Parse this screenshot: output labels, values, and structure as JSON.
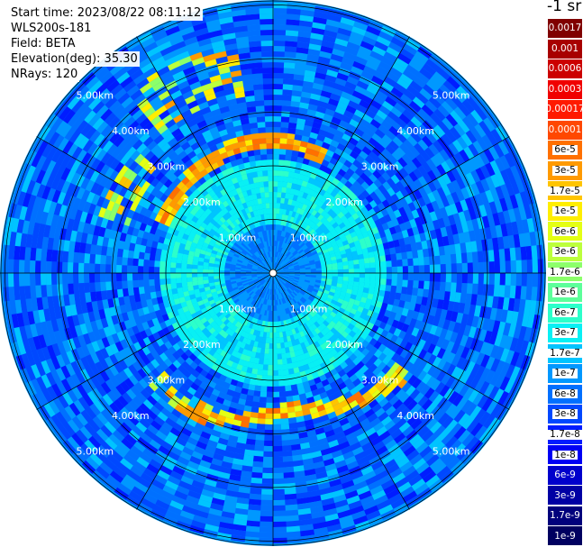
{
  "header": {
    "start_time": "Start time: 2023/08/22 08:11:12",
    "station": "WLS200s-181",
    "field": "Field: BETA",
    "elevation": "Elevation(deg): 35.30",
    "nrays": "NRays: 120"
  },
  "chart_data": {
    "type": "heatmap",
    "projection": "polar (PPI scan)",
    "field": "BETA",
    "unit": "-1 sr",
    "ranges_km": [
      1,
      2,
      3,
      4,
      5
    ],
    "range_labels": [
      "1.00km",
      "2.00km",
      "3.00km",
      "4.00km",
      "5.00km"
    ],
    "spoke_angles_deg": [
      0,
      30,
      60,
      90,
      120,
      150,
      180,
      210,
      240,
      270,
      300,
      330
    ],
    "colorbar": {
      "title": "-1 sr",
      "labels": [
        "0.0017",
        "0.001",
        "0.0006",
        "0.0003",
        "0.00017",
        "0.0001",
        "6e-5",
        "3e-5",
        "1.7e-5",
        "1e-5",
        "6e-6",
        "3e-6",
        "1.7e-6",
        "1e-6",
        "6e-7",
        "3e-7",
        "1.7e-7",
        "1e-7",
        "6e-8",
        "3e-8",
        "1.7e-8",
        "1e-8",
        "6e-9",
        "3e-9",
        "1.7e-9",
        "1e-9"
      ],
      "colors": [
        "#800000",
        "#a80000",
        "#cc0000",
        "#f00000",
        "#ff1a00",
        "#ff4800",
        "#ff7000",
        "#ff9a00",
        "#ffc400",
        "#ffee00",
        "#e4ff14",
        "#bcff3c",
        "#8cff6a",
        "#5cff9a",
        "#2cffca",
        "#08f0f4",
        "#00c4ff",
        "#0098ff",
        "#0070ff",
        "#0048ff",
        "#001cff",
        "#0000f4",
        "#0000cc",
        "#0000a4",
        "#00007c",
        "#000060"
      ],
      "white_label_indices": [
        0,
        1,
        2,
        3,
        4,
        5,
        22,
        23,
        24,
        25
      ]
    },
    "features": [
      {
        "description": "near-field return",
        "range_km": [
          0,
          1.0
        ],
        "level": "1e-7 to 1.7e-7"
      },
      {
        "description": "mid ring",
        "range_km": [
          1.0,
          2.2
        ],
        "level": "3e-7 to 6e-7"
      },
      {
        "description": "outer background",
        "range_km": [
          2.2,
          5.1
        ],
        "level": "3e-8 to 1e-7"
      },
      {
        "description": "aerosol layer arc (north-west)",
        "range_km": [
          2.2,
          4.3
        ],
        "azimuth_deg": [
          -45,
          5
        ],
        "level": "3e-5 to 1e-4"
      },
      {
        "description": "aerosol layer arc (south)",
        "range_km": [
          2.4,
          3.1
        ],
        "azimuth_deg": [
          130,
          215
        ],
        "level": "3e-5 to 1e-4"
      }
    ]
  }
}
